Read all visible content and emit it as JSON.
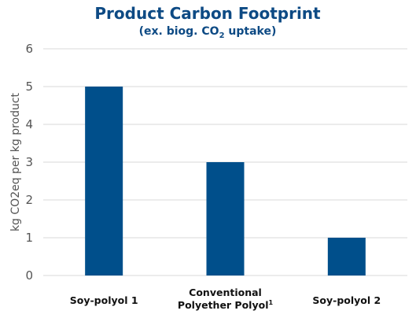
{
  "chart_data": {
    "type": "bar",
    "title": "Product Carbon Footprint",
    "subtitle": {
      "prefix": "(ex. biog. CO",
      "subscript": "2",
      "suffix": " uptake)"
    },
    "xlabel": "",
    "ylabel": "kg CO2eq per kg product",
    "ylim": [
      0,
      6
    ],
    "yticks": [
      "0",
      "1",
      "2",
      "3",
      "4",
      "5",
      "6"
    ],
    "categories": [
      {
        "lines": [
          "Soy-polyol 1"
        ],
        "superscript": ""
      },
      {
        "lines": [
          "Conventional",
          "Polyether Polyol"
        ],
        "superscript": "1"
      },
      {
        "lines": [
          "Soy-polyol 2"
        ],
        "superscript": ""
      }
    ],
    "values": [
      5,
      3,
      1
    ],
    "grid": true,
    "legend": "none",
    "colors": {
      "bar": "#004f8b",
      "title": "#0d4a84",
      "grid": "#d9d9d9",
      "ticks": "#555555"
    }
  }
}
